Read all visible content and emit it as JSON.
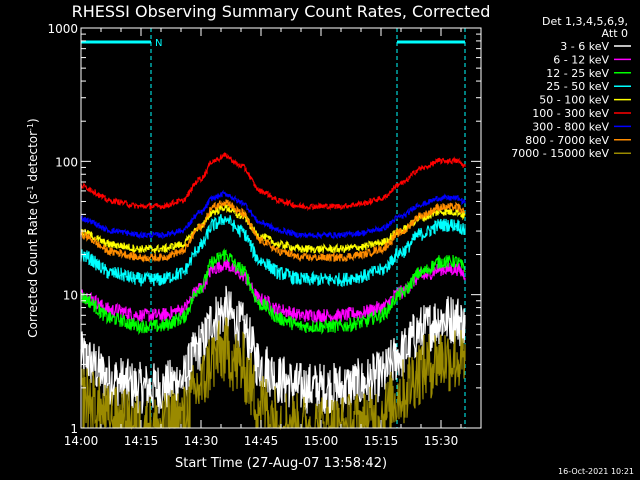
{
  "chart_data": {
    "type": "line",
    "title": "RHESSI Observing Summary Count Rates, Corrected",
    "xlabel": "Start Time (27-Aug-07 13:58:42)",
    "ylabel_parts": [
      "Corrected Count Rate (s",
      "-1",
      " detector",
      "-1",
      ")"
    ],
    "yscale": "log",
    "ylim": [
      1,
      1000
    ],
    "xlim_minutes": [
      0,
      100
    ],
    "x_ticks": [
      "14:00",
      "14:15",
      "14:30",
      "14:45",
      "15:00",
      "15:15",
      "15:30"
    ],
    "x_tick_minutes": [
      0,
      15,
      30,
      45,
      60,
      75,
      90
    ],
    "y_ticks": [
      "1",
      "10",
      "100",
      "1000"
    ],
    "y_tick_values": [
      1,
      10,
      100,
      1000
    ],
    "legend_title": [
      "Det 1,3,4,5,6,9,",
      "Att 0"
    ],
    "legend_position": "outside-right",
    "timestamp": "16-Oct-2021 10:21",
    "night_intervals": [
      {
        "start": 0,
        "end": 17.5,
        "label": "N"
      },
      {
        "start": 79,
        "end": 96,
        "label": ""
      }
    ],
    "envelope": {
      "x_minutes": [
        0,
        8,
        15,
        20,
        25,
        30,
        33,
        36,
        40,
        45,
        50,
        55,
        60,
        65,
        70,
        75,
        80,
        85,
        90,
        94,
        96
      ],
      "shape": [
        0.4,
        0.1,
        0.0,
        0.0,
        0.1,
        0.55,
        0.9,
        1.0,
        0.8,
        0.3,
        0.1,
        0.0,
        0.0,
        0.0,
        0.05,
        0.15,
        0.45,
        0.75,
        0.9,
        0.9,
        0.8
      ]
    },
    "series": [
      {
        "name": "3 - 6 keV",
        "color": "#ffffff",
        "min": 2.0,
        "max": 7.5,
        "noise": 0.45
      },
      {
        "name": "6 - 12 keV",
        "color": "#ff00ff",
        "min": 7.0,
        "max": 17,
        "noise": 0.12
      },
      {
        "name": "12 - 25 keV",
        "color": "#00ff00",
        "min": 5.8,
        "max": 20,
        "noise": 0.12
      },
      {
        "name": "25 - 50 keV",
        "color": "#00ffff",
        "min": 13,
        "max": 37,
        "noise": 0.12
      },
      {
        "name": "50 - 100 keV",
        "color": "#ffff00",
        "min": 22,
        "max": 45,
        "noise": 0.07
      },
      {
        "name": "100 - 300 keV",
        "color": "#ff0000",
        "min": 46,
        "max": 110,
        "noise": 0.05
      },
      {
        "name": "300 - 800 keV",
        "color": "#0000ff",
        "min": 28,
        "max": 57,
        "noise": 0.05
      },
      {
        "name": "800 - 7000 keV",
        "color": "#ff8c00",
        "min": 19,
        "max": 50,
        "noise": 0.07
      },
      {
        "name": "7000 - 15000 keV",
        "color": "#9a8a00",
        "min": 1.0,
        "max": 3.8,
        "noise": 0.6
      }
    ]
  }
}
